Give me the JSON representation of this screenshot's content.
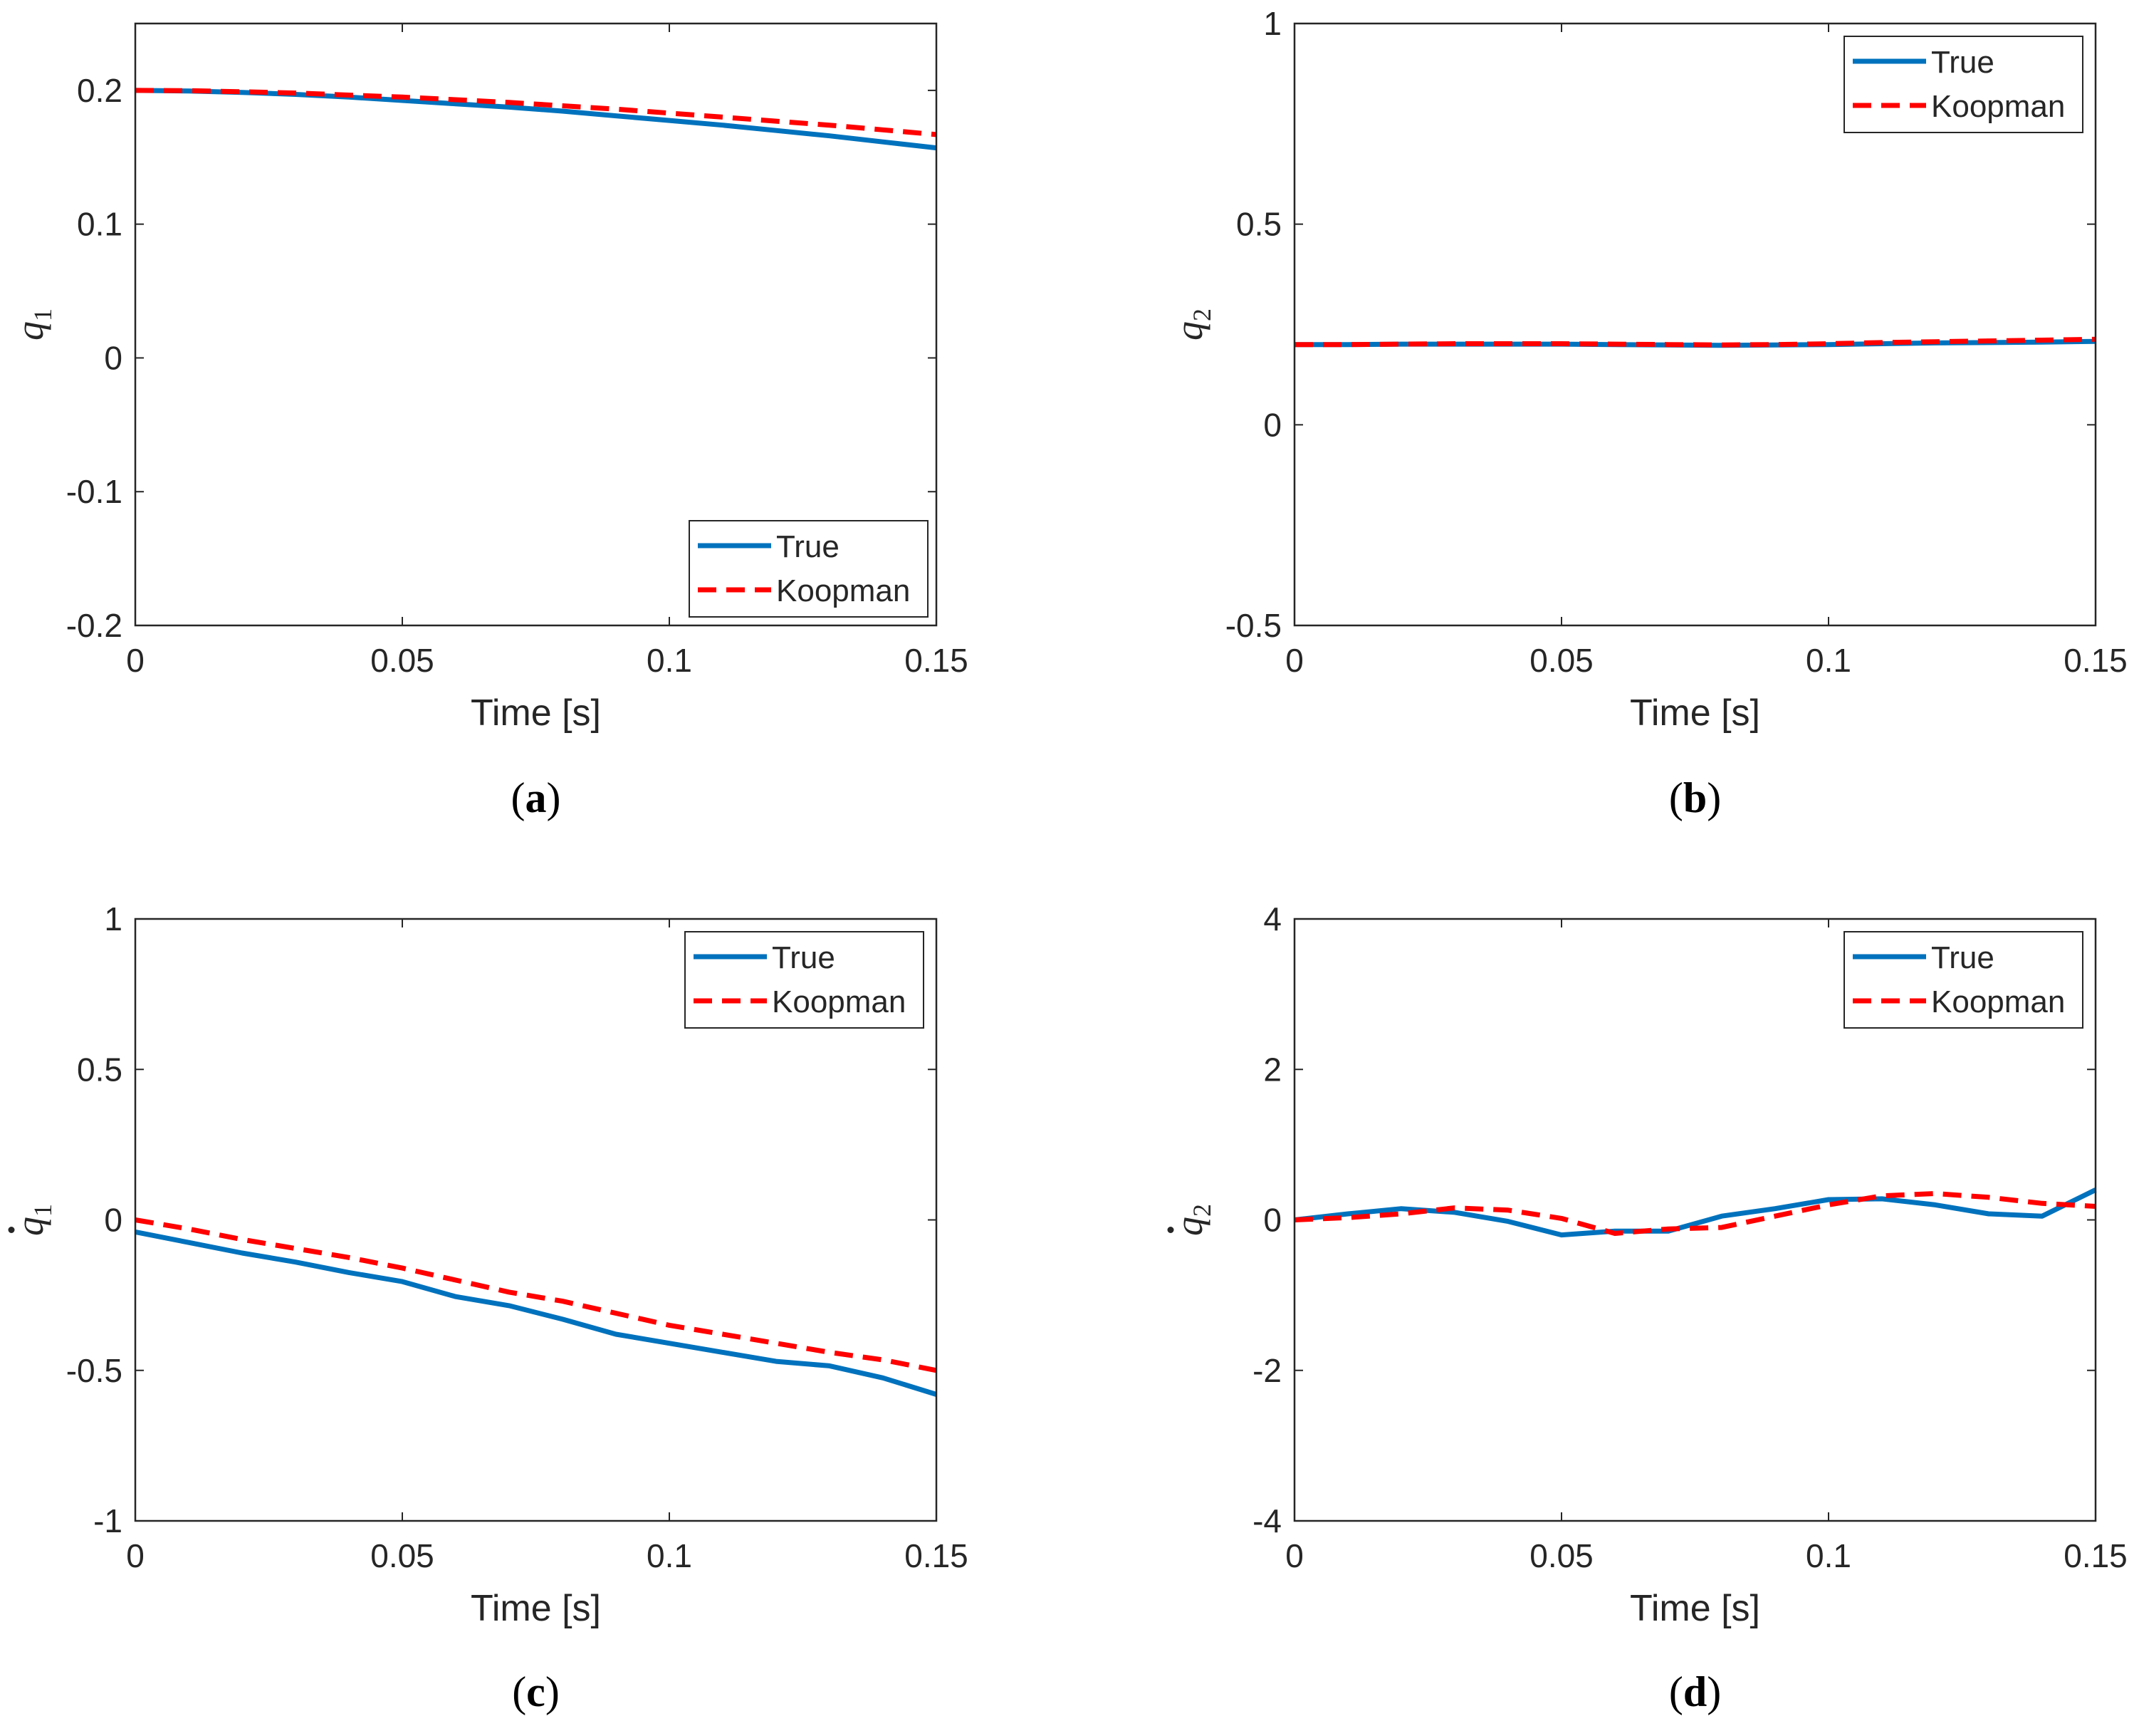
{
  "chart_data": [
    {
      "type": "line",
      "panel_label": "a",
      "xlabel": "Time [s]",
      "ylabel": {
        "symbol": "q",
        "sub": "1",
        "dot": false
      },
      "xlim": [
        0,
        0.15
      ],
      "ylim": [
        -0.2,
        0.25
      ],
      "xticks": [
        0,
        0.05,
        0.1,
        0.15
      ],
      "xtick_labels": [
        "0",
        "0.05",
        "0.1",
        "0.15"
      ],
      "yticks": [
        -0.2,
        -0.1,
        0,
        0.1,
        0.2
      ],
      "ytick_labels": [
        "-0.2",
        "-0.1",
        "0",
        "0.1",
        "0.2"
      ],
      "legend_position": "bottom-right",
      "x": [
        0,
        0.01,
        0.02,
        0.03,
        0.04,
        0.05,
        0.06,
        0.07,
        0.08,
        0.09,
        0.1,
        0.11,
        0.12,
        0.13,
        0.14,
        0.15
      ],
      "series": [
        {
          "name": "True",
          "color": "#0072BD",
          "style": "solid",
          "values": [
            0.2,
            0.1995,
            0.1985,
            0.197,
            0.195,
            0.1925,
            0.19,
            0.1875,
            0.1845,
            0.181,
            0.1775,
            0.174,
            0.17,
            0.166,
            0.1615,
            0.157
          ]
        },
        {
          "name": "Koopman",
          "color": "#FF0000",
          "style": "dashed",
          "values": [
            0.2,
            0.1998,
            0.199,
            0.198,
            0.1965,
            0.195,
            0.193,
            0.191,
            0.1885,
            0.186,
            0.183,
            0.18,
            0.177,
            0.174,
            0.1705,
            0.167
          ]
        }
      ]
    },
    {
      "type": "line",
      "panel_label": "b",
      "xlabel": "Time [s]",
      "ylabel": {
        "symbol": "q",
        "sub": "2",
        "dot": false
      },
      "xlim": [
        0,
        0.15
      ],
      "ylim": [
        -0.5,
        1
      ],
      "xticks": [
        0,
        0.05,
        0.1,
        0.15
      ],
      "xtick_labels": [
        "0",
        "0.05",
        "0.1",
        "0.15"
      ],
      "yticks": [
        -0.5,
        0,
        0.5,
        1
      ],
      "ytick_labels": [
        "-0.5",
        "0",
        "0.5",
        "1"
      ],
      "legend_position": "top-right",
      "x": [
        0,
        0.01,
        0.02,
        0.03,
        0.04,
        0.05,
        0.06,
        0.07,
        0.08,
        0.09,
        0.1,
        0.11,
        0.12,
        0.13,
        0.14,
        0.15
      ],
      "series": [
        {
          "name": "True",
          "color": "#0072BD",
          "style": "solid",
          "values": [
            0.2,
            0.2,
            0.201,
            0.201,
            0.201,
            0.201,
            0.2,
            0.199,
            0.198,
            0.199,
            0.2,
            0.202,
            0.204,
            0.205,
            0.206,
            0.208
          ]
        },
        {
          "name": "Koopman",
          "color": "#FF0000",
          "style": "dashed",
          "values": [
            0.2,
            0.2,
            0.201,
            0.202,
            0.202,
            0.202,
            0.201,
            0.2,
            0.199,
            0.2,
            0.202,
            0.205,
            0.207,
            0.209,
            0.211,
            0.213
          ]
        }
      ]
    },
    {
      "type": "line",
      "panel_label": "c",
      "xlabel": "Time [s]",
      "ylabel": {
        "symbol": "q",
        "sub": "1",
        "dot": true
      },
      "xlim": [
        0,
        0.15
      ],
      "ylim": [
        -1,
        1
      ],
      "xticks": [
        0,
        0.05,
        0.1,
        0.15
      ],
      "xtick_labels": [
        "0",
        "0.05",
        "0.1",
        "0.15"
      ],
      "yticks": [
        -1,
        -0.5,
        0,
        0.5,
        1
      ],
      "ytick_labels": [
        "-1",
        "-0.5",
        "0",
        "0.5",
        "1"
      ],
      "legend_position": "top-right",
      "x": [
        0,
        0.01,
        0.02,
        0.03,
        0.04,
        0.05,
        0.06,
        0.07,
        0.08,
        0.09,
        0.1,
        0.11,
        0.12,
        0.13,
        0.14,
        0.15
      ],
      "series": [
        {
          "name": "True",
          "color": "#0072BD",
          "style": "solid",
          "values": [
            -0.04,
            -0.075,
            -0.11,
            -0.14,
            -0.175,
            -0.205,
            -0.255,
            -0.285,
            -0.33,
            -0.38,
            -0.41,
            -0.44,
            -0.47,
            -0.485,
            -0.525,
            -0.58
          ]
        },
        {
          "name": "Koopman",
          "color": "#FF0000",
          "style": "dashed",
          "values": [
            0.0,
            -0.03,
            -0.065,
            -0.095,
            -0.125,
            -0.16,
            -0.2,
            -0.24,
            -0.27,
            -0.31,
            -0.35,
            -0.38,
            -0.41,
            -0.44,
            -0.465,
            -0.5
          ]
        }
      ]
    },
    {
      "type": "line",
      "panel_label": "d",
      "xlabel": "Time [s]",
      "ylabel": {
        "symbol": "q",
        "sub": "2",
        "dot": true
      },
      "xlim": [
        0,
        0.15
      ],
      "ylim": [
        -4,
        4
      ],
      "xticks": [
        0,
        0.05,
        0.1,
        0.15
      ],
      "xtick_labels": [
        "0",
        "0.05",
        "0.1",
        "0.15"
      ],
      "yticks": [
        -4,
        -2,
        0,
        2,
        4
      ],
      "ytick_labels": [
        "-4",
        "-2",
        "0",
        "2",
        "4"
      ],
      "legend_position": "top-right",
      "x": [
        0,
        0.01,
        0.02,
        0.03,
        0.04,
        0.05,
        0.06,
        0.07,
        0.08,
        0.09,
        0.1,
        0.11,
        0.12,
        0.13,
        0.14,
        0.15
      ],
      "series": [
        {
          "name": "True",
          "color": "#0072BD",
          "style": "solid",
          "values": [
            0.0,
            0.08,
            0.15,
            0.1,
            -0.02,
            -0.2,
            -0.15,
            -0.15,
            0.05,
            0.15,
            0.27,
            0.28,
            0.2,
            0.08,
            0.05,
            0.4
          ]
        },
        {
          "name": "Koopman",
          "color": "#FF0000",
          "style": "dashed",
          "values": [
            0.0,
            0.03,
            0.08,
            0.16,
            0.13,
            0.02,
            -0.18,
            -0.12,
            -0.1,
            0.05,
            0.2,
            0.32,
            0.35,
            0.3,
            0.22,
            0.18
          ]
        }
      ]
    }
  ]
}
